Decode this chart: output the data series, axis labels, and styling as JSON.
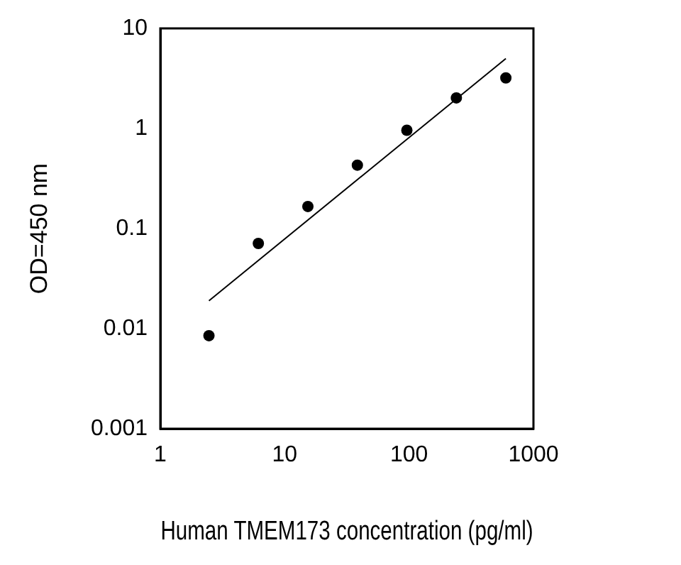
{
  "chart_data": {
    "type": "scatter",
    "xlabel": "Human TMEM173 concentration (pg/ml)",
    "ylabel": "OD=450 nm",
    "log": "xy",
    "marker": "circle",
    "xlim": [
      1,
      1000
    ],
    "xticks": [
      1,
      10,
      100,
      1000
    ],
    "ylim": [
      0.001,
      10
    ],
    "yticks": [
      0.001,
      0.01,
      0.1,
      1,
      10
    ],
    "series": [
      {
        "type": "scatter",
        "color": "#000000",
        "x": [
          2.46,
          6.14,
          15.36,
          38.4,
          96,
          240,
          600
        ],
        "values": [
          0.0085,
          0.071,
          0.166,
          0.43,
          0.96,
          2.02,
          3.2
        ]
      },
      {
        "type": "line",
        "color": "#000000",
        "marker": "none",
        "x": [
          2.46,
          600
        ],
        "values": [
          0.019,
          5.0
        ]
      }
    ]
  }
}
